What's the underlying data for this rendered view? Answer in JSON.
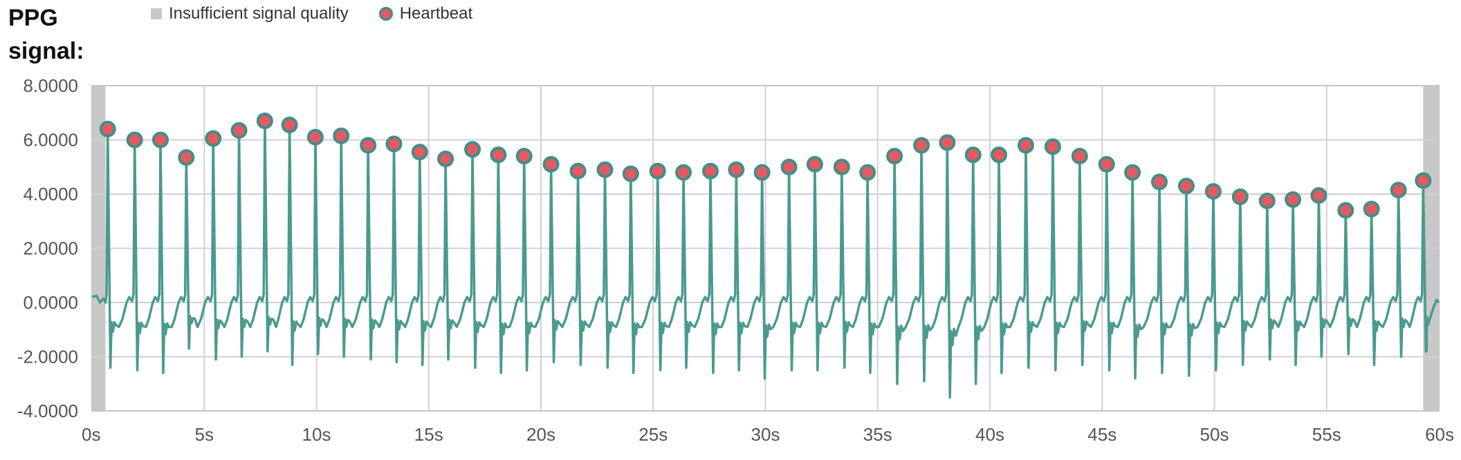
{
  "title": "PPG signal:",
  "legend": {
    "gap_label": "Insufficient signal quality",
    "beat_label": "Heartbeat"
  },
  "colors": {
    "signal": "#4a9a8e",
    "beat_fill": "#e35a63",
    "beat_stroke": "#3f8f86",
    "gap": "#c8c8c8",
    "grid": "#d0d0d0"
  },
  "chart_data": {
    "type": "line",
    "title": "PPG signal:",
    "xlim": [
      0,
      60
    ],
    "ylim": [
      -4,
      8
    ],
    "x_ticks": [
      0,
      5,
      10,
      15,
      20,
      25,
      30,
      35,
      40,
      45,
      50,
      55,
      60
    ],
    "x_tick_labels": [
      "0s",
      "5s",
      "10s",
      "15s",
      "20s",
      "25s",
      "30s",
      "35s",
      "40s",
      "45s",
      "50s",
      "55s",
      "60s"
    ],
    "y_ticks": [
      -4,
      -2,
      0,
      2,
      4,
      6,
      8
    ],
    "y_tick_labels": [
      "-4.0000",
      "-2.0000",
      "0.0000",
      "2.0000",
      "4.0000",
      "6.0000",
      "8.0000"
    ],
    "grid": true,
    "legend_position": "top",
    "insufficient_quality_regions": [
      [
        0,
        0.6
      ],
      [
        59.3,
        60
      ]
    ],
    "heartbeats": {
      "name": "Heartbeat",
      "x": [
        0.7,
        1.9,
        3.05,
        4.2,
        5.4,
        6.55,
        7.7,
        8.8,
        9.95,
        11.1,
        12.3,
        13.45,
        14.6,
        15.75,
        16.95,
        18.1,
        19.25,
        20.45,
        21.65,
        22.85,
        24.0,
        25.2,
        26.35,
        27.55,
        28.7,
        29.85,
        31.05,
        32.2,
        33.4,
        34.55,
        35.75,
        36.95,
        38.1,
        39.25,
        40.4,
        41.6,
        42.8,
        44.0,
        45.2,
        46.35,
        47.55,
        48.75,
        49.95,
        51.15,
        52.35,
        53.5,
        54.65,
        55.85,
        57.0,
        58.2,
        59.3
      ],
      "y": [
        6.4,
        6.0,
        6.0,
        5.35,
        6.05,
        6.35,
        6.7,
        6.55,
        6.1,
        6.15,
        5.8,
        5.85,
        5.55,
        5.3,
        5.65,
        5.45,
        5.4,
        5.1,
        4.85,
        4.9,
        4.75,
        4.85,
        4.8,
        4.85,
        4.9,
        4.8,
        5.0,
        5.1,
        5.0,
        4.8,
        5.4,
        5.8,
        5.9,
        5.45,
        5.45,
        5.8,
        5.75,
        5.4,
        5.1,
        4.8,
        4.45,
        4.3,
        4.1,
        3.9,
        3.75,
        3.8,
        3.95,
        3.4,
        3.45,
        4.15,
        4.5
      ]
    },
    "troughs": [
      -2.4,
      -2.5,
      -2.6,
      -1.7,
      -2.1,
      -2.0,
      -1.8,
      -2.3,
      -1.9,
      -2.0,
      -2.1,
      -2.2,
      -2.3,
      -2.1,
      -2.4,
      -2.6,
      -2.5,
      -2.2,
      -2.3,
      -2.4,
      -2.6,
      -2.5,
      -2.4,
      -2.6,
      -2.5,
      -2.8,
      -2.5,
      -2.5,
      -2.4,
      -2.6,
      -3.0,
      -2.9,
      -3.5,
      -3.0,
      -2.6,
      -2.4,
      -2.5,
      -2.3,
      -2.5,
      -2.8,
      -2.6,
      -2.7,
      -2.5,
      -2.3,
      -2.1,
      -2.3,
      -2.0,
      -1.9,
      -2.3,
      -2.0,
      -1.8
    ]
  }
}
